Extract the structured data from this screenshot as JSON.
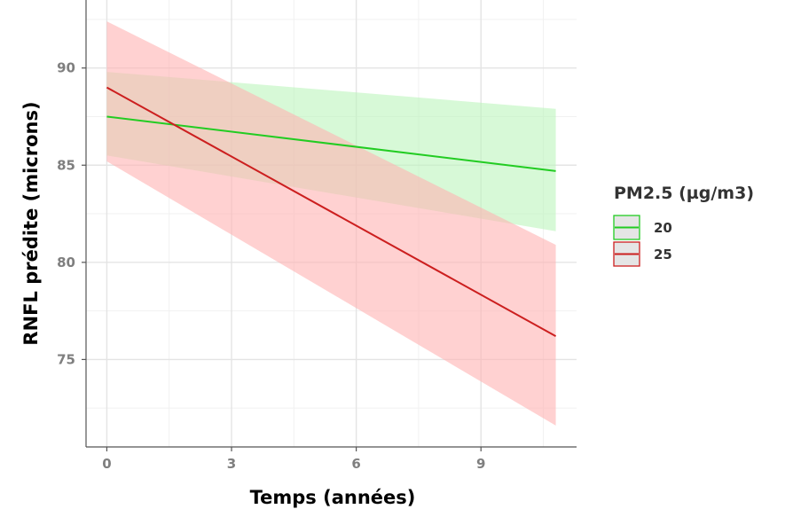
{
  "chart_data": {
    "type": "line",
    "title": "",
    "xlabel": "Temps (années)",
    "ylabel": "RNFL prédite (microns)",
    "xlim": [
      -0.5,
      11.3
    ],
    "ylim": [
      70.5,
      93.5
    ],
    "x_ticks": [
      0,
      3,
      6,
      9
    ],
    "x_tick_labels": [
      "0",
      "3",
      "6",
      "9"
    ],
    "y_ticks": [
      75,
      80,
      85,
      90
    ],
    "y_tick_labels": [
      "75",
      "80",
      "85",
      "90"
    ],
    "grid": true,
    "legend": {
      "title": "PM2.5 (µg/m3)",
      "placement": "right"
    },
    "series": [
      {
        "name": "20",
        "color": "#22cc22",
        "fill": "#bdf5bd",
        "x": [
          0,
          10.8
        ],
        "y": [
          87.5,
          84.7
        ],
        "lower": [
          85.5,
          81.6
        ],
        "upper": [
          89.8,
          87.9
        ]
      },
      {
        "name": "25",
        "color": "#cc1f1f",
        "fill": "#ffb3b3",
        "x": [
          0,
          10.8
        ],
        "y": [
          89.0,
          76.2
        ],
        "lower": [
          85.2,
          71.6
        ],
        "upper": [
          92.4,
          80.9
        ]
      }
    ]
  }
}
